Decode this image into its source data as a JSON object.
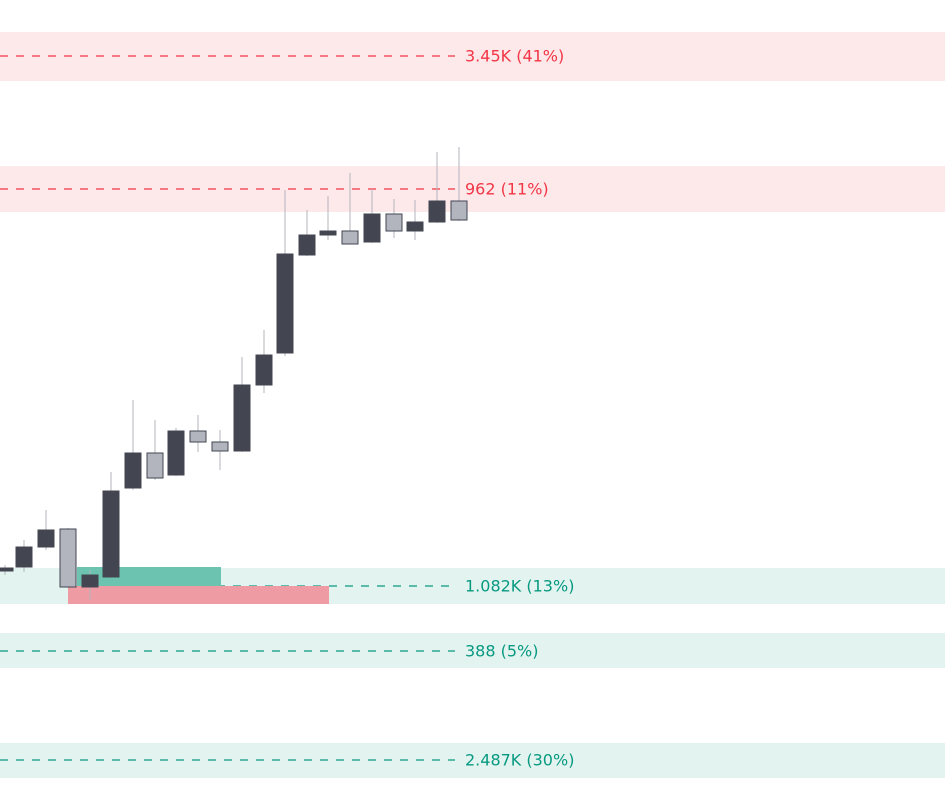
{
  "levels": [
    {
      "label": "3.45K (41%)",
      "kind": "target"
    },
    {
      "label": "962 (11%)",
      "kind": "target"
    },
    {
      "label": "1.082K (13%)",
      "kind": "stop"
    },
    {
      "label": "388 (5%)",
      "kind": "stop"
    },
    {
      "label": "2.487K (30%)",
      "kind": "stop"
    }
  ]
}
